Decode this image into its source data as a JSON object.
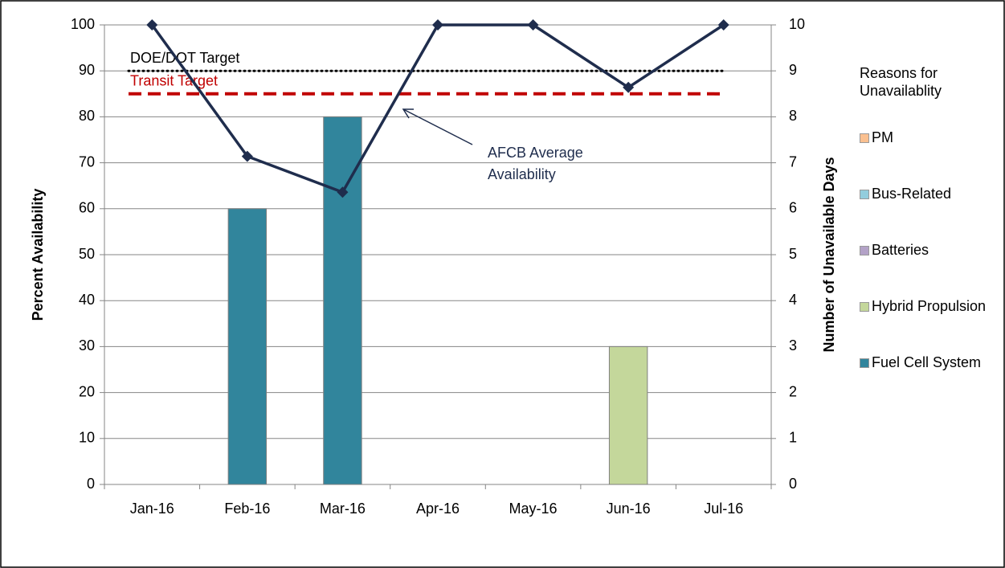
{
  "chart_data": {
    "type": "combo",
    "categories": [
      "Jan-16",
      "Feb-16",
      "Mar-16",
      "Apr-16",
      "May-16",
      "Jun-16",
      "Jul-16"
    ],
    "ylabel": "Percent Availability",
    "y2label": "Number of Unavailable Days",
    "ylim": [
      0,
      100
    ],
    "yticks": [
      0,
      10,
      20,
      30,
      40,
      50,
      60,
      70,
      80,
      90,
      100
    ],
    "y2lim": [
      0,
      10
    ],
    "y2ticks": [
      0,
      1,
      2,
      3,
      4,
      5,
      6,
      7,
      8,
      9,
      10
    ],
    "legend_title": "Reasons for Unavailablity",
    "legend_position": "right",
    "series": [
      {
        "name": "Fuel Cell System",
        "type": "bar",
        "axis": "y2",
        "color": "#31859c",
        "values": [
          0,
          6,
          8,
          0,
          0,
          0,
          0
        ]
      },
      {
        "name": "Hybrid Propulsion",
        "type": "bar",
        "axis": "y2",
        "color": "#c4d79b",
        "values": [
          0,
          0,
          0,
          0,
          0,
          3,
          0
        ]
      },
      {
        "name": "Batteries",
        "type": "bar",
        "axis": "y2",
        "color": "#b3a2c7",
        "values": [
          0,
          0,
          0,
          0,
          0,
          0,
          0
        ]
      },
      {
        "name": "Bus-Related",
        "type": "bar",
        "axis": "y2",
        "color": "#93cddd",
        "values": [
          0,
          0,
          0,
          0,
          0,
          0,
          0
        ]
      },
      {
        "name": "PM",
        "type": "bar",
        "axis": "y2",
        "color": "#fac090",
        "values": [
          0,
          0,
          0,
          0,
          0,
          0,
          0
        ]
      }
    ],
    "line": {
      "name": "AFCB Average Availability",
      "axis": "y",
      "color": "#1f2d4d",
      "values": [
        100,
        71.4,
        63.6,
        100,
        100,
        86.4,
        100
      ]
    },
    "reference_lines": [
      {
        "name": "DOE/DOT Target",
        "value": 90,
        "color": "#000000",
        "style": "dotted"
      },
      {
        "name": "Transit Target",
        "value": 85,
        "color": "#c00000",
        "style": "dashed"
      }
    ]
  }
}
